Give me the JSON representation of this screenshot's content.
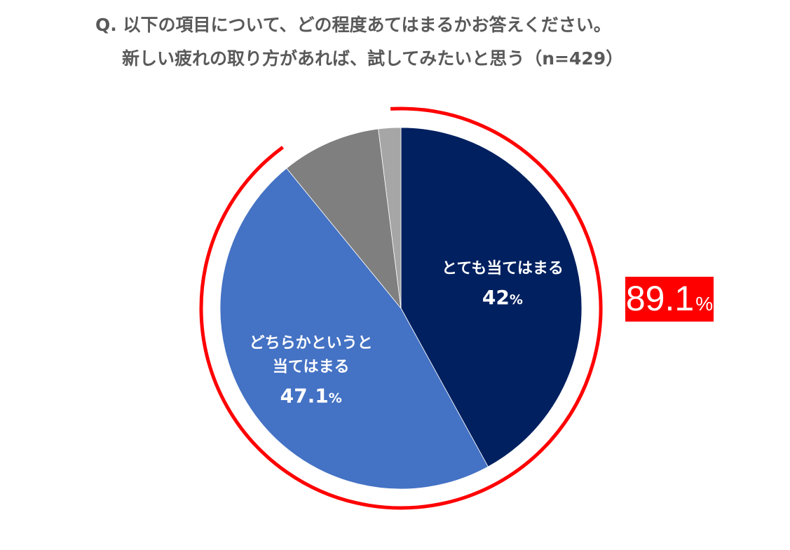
{
  "header": {
    "title_line1": "Q. 以下の項目について、どの程度あてはまるかお答えください。",
    "title_line2": "新しい疲れの取り方があれば、試してみたいと思う（n=429）"
  },
  "colors": {
    "slice1": "#002060",
    "slice2": "#4472C4",
    "slice3": "#7F7F7F",
    "slice4": "#A6A6A6",
    "highlight": "#FF0000"
  },
  "chart_data": {
    "type": "pie",
    "title": "新しい疲れの取り方があれば、試してみたいと思う（n=429）",
    "start_angle_deg": 0,
    "direction": "clockwise",
    "slices": [
      {
        "name": "とても当てはまる",
        "value": 42.0,
        "label_lines": [
          "とても当てはまる"
        ],
        "value_text": "42",
        "unit": "%"
      },
      {
        "name": "どちらかというと当てはまる",
        "value": 47.1,
        "label_lines": [
          "どちらかというと",
          "当てはまる"
        ],
        "value_text": "47.1",
        "unit": "%"
      },
      {
        "name": "",
        "value": 8.9,
        "label_lines": [],
        "value_text": "",
        "unit": ""
      },
      {
        "name": "",
        "value": 2.0,
        "label_lines": [],
        "value_text": "",
        "unit": ""
      }
    ],
    "highlight": {
      "covers_slices": [
        0,
        1
      ],
      "value_text": "89.1",
      "unit": "%"
    }
  }
}
